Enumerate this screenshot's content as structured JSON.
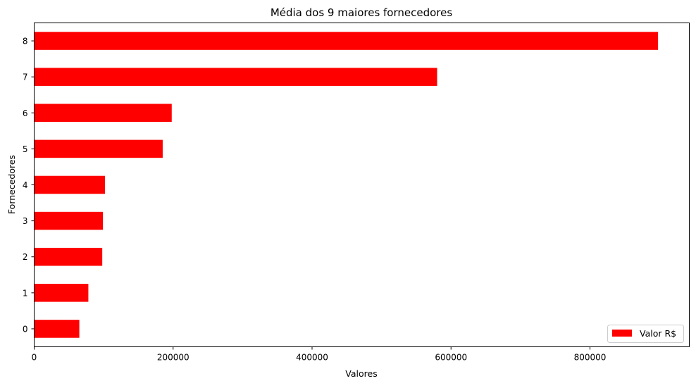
{
  "chart_data": {
    "type": "bar",
    "orientation": "horizontal",
    "title": "Média dos 9 maiores fornecedores",
    "xlabel": "Valores",
    "ylabel": "Fornecedores",
    "categories": [
      "0",
      "1",
      "2",
      "3",
      "4",
      "5",
      "6",
      "7",
      "8"
    ],
    "series": [
      {
        "name": "Valor R$",
        "color": "#ff0000",
        "values": [
          65000,
          78000,
          98000,
          99000,
          102000,
          185000,
          198000,
          580000,
          898000
        ]
      }
    ],
    "xlim": [
      0,
      943000
    ],
    "xticks": [
      0,
      200000,
      400000,
      600000,
      800000
    ],
    "xtick_labels": [
      "0",
      "200000",
      "400000",
      "600000",
      "800000"
    ],
    "grid": false,
    "legend_position": "lower-right"
  }
}
